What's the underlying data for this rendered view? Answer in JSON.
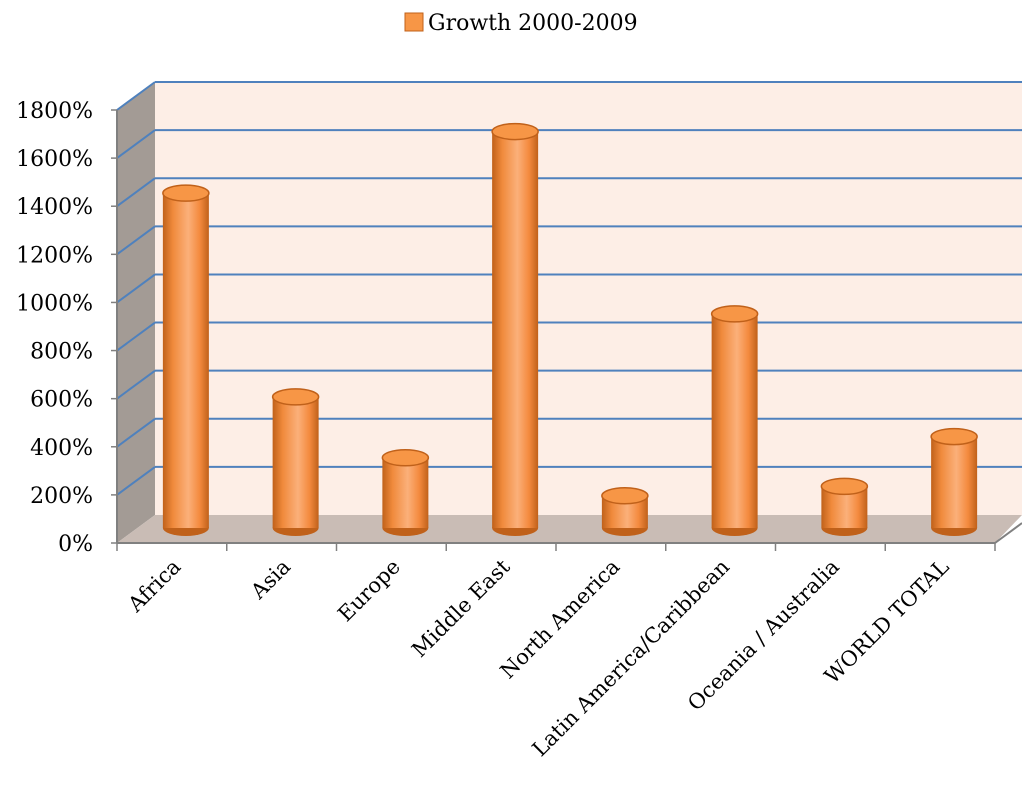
{
  "chart_data": {
    "type": "bar",
    "style": "3d-cylinder",
    "title": "",
    "xlabel": "",
    "ylabel": "",
    "categories": [
      "Africa",
      "Asia",
      "Europe",
      "Middle East",
      "North America",
      "Latin America/Caribbean",
      "Oceania / Australia",
      "WORLD TOTAL"
    ],
    "series": [
      {
        "name": "Growth 2000-2009",
        "values": [
          1392,
          545,
          292,
          1648,
          134,
          890,
          173,
          380
        ]
      }
    ],
    "ylim": [
      0,
      1800
    ],
    "yticks": [
      "0%",
      "200%",
      "400%",
      "600%",
      "800%",
      "1000%",
      "1200%",
      "1400%",
      "1600%",
      "1800%"
    ],
    "grid": true,
    "legend_position": "top",
    "colors": {
      "bar": "#f79646",
      "bar_dark": "#c0611a",
      "bar_light": "#fbbf8e",
      "back_wall": "#fdeee6",
      "side_wall": "#a39b95",
      "floor": "#c9bcb5",
      "gridline": "#4f81bd"
    }
  }
}
